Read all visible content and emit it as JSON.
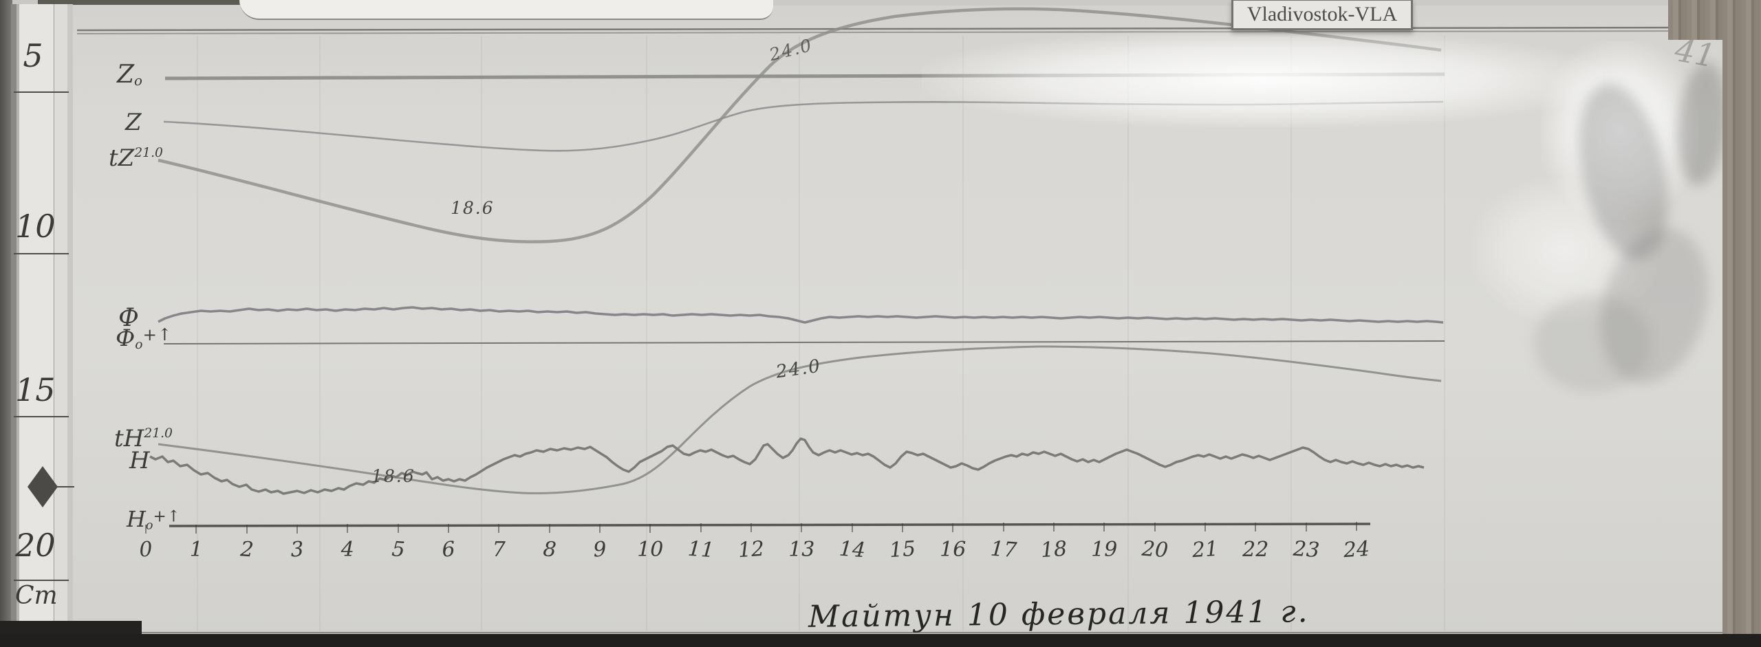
{
  "photo": {
    "station_label": "Vladivostok-VLA",
    "corner_note": "41"
  },
  "ruler": {
    "marks": [
      "5",
      "10",
      "15",
      "20",
      "Cm"
    ]
  },
  "chart": {
    "caption": "Майтун 10 февраля 1941 г.",
    "trace_labels": {
      "z0": {
        "main": "Z",
        "sub": "o"
      },
      "z": {
        "main": "Z"
      },
      "tz": {
        "main": "tZ",
        "sup": "21.0"
      },
      "phi": {
        "main": "Ф"
      },
      "phi0": {
        "main": "Ф",
        "sub": "o",
        "suffix": "+↑"
      },
      "th": {
        "main": "tH",
        "sup": "21.0"
      },
      "h": {
        "main": "H"
      },
      "h0": {
        "main": "H",
        "sub": "o",
        "suffix": "+↑"
      }
    },
    "annotations": {
      "tz_min": "18.6",
      "tz_cross": "24.0",
      "th_min": "18.6",
      "th_cross": "24.0"
    },
    "x_axis": {
      "unit": "hour",
      "ticks": [
        "0",
        "1",
        "2",
        "3",
        "4",
        "5",
        "6",
        "7",
        "8",
        "9",
        "10",
        "11",
        "12",
        "13",
        "14",
        "15",
        "16",
        "17",
        "18",
        "19",
        "20",
        "21",
        "22",
        "23",
        "24"
      ]
    }
  },
  "chart_data": {
    "type": "line",
    "title": "Майтун 10 февраля 1941 г.",
    "station": "Vladivostok-VLA",
    "x": [
      0,
      1,
      2,
      3,
      4,
      5,
      6,
      7,
      8,
      9,
      10,
      11,
      12,
      13,
      14,
      15,
      16,
      17,
      18,
      19,
      20,
      21,
      22,
      23,
      24
    ],
    "x_unit": "hour",
    "x_range": [
      0,
      24
    ],
    "grid": false,
    "legend_position": "handwritten labels in left margin",
    "baselines": [
      "Zo (straight reference line)",
      "Фo (straight reference line)",
      "Ho (straight reference line, carries hour ticks)"
    ],
    "series": [
      {
        "name": "Z",
        "unit": "mm below Zo baseline (digitized from cm ruler scale)",
        "values": [
          14.3,
          15.1,
          16.2,
          17.4,
          18.9,
          20.4,
          21.7,
          22.8,
          23.2,
          21.9,
          18.3,
          13.2,
          10.2,
          8.7,
          8.3,
          8.3,
          8.5,
          8.7,
          8.9,
          8.9,
          8.9,
          8.7,
          8.5,
          8.3,
          8.1
        ]
      },
      {
        "name": "tZ",
        "unit": "°C",
        "start_value": 21.0,
        "values": [
          21.0,
          20.7,
          20.4,
          20.0,
          19.7,
          19.3,
          18.9,
          18.7,
          18.7,
          19.1,
          20.3,
          22.2,
          23.6,
          24.8,
          25.3,
          25.5,
          25.6,
          25.5,
          25.4,
          25.3,
          25.1,
          24.9,
          24.7,
          24.5,
          24.3
        ],
        "marked_points": [
          {
            "value": 21.0,
            "at_hour": 0
          },
          {
            "value": 18.6,
            "at_hour": 7.5,
            "note": "minimum"
          },
          {
            "value": 24.0,
            "at_hour": 12.7,
            "note": "crossing top border"
          }
        ]
      },
      {
        "name": "Ф",
        "unit": "mm above Фo baseline (digitized from cm ruler scale)",
        "values": [
          6.6,
          9.4,
          10.0,
          10.2,
          10.4,
          10.2,
          10.9,
          10.4,
          10.0,
          9.4,
          8.9,
          8.7,
          8.5,
          7.0,
          7.9,
          8.3,
          8.1,
          8.3,
          8.1,
          7.9,
          7.9,
          7.7,
          7.4,
          7.0,
          6.6
        ]
      },
      {
        "name": "tH",
        "unit": "°C",
        "start_value": 21.0,
        "values": [
          21.0,
          20.8,
          20.5,
          20.2,
          19.8,
          19.4,
          19.0,
          18.7,
          18.6,
          18.9,
          20.3,
          22.4,
          23.6,
          24.5,
          25.0,
          25.3,
          25.5,
          25.6,
          25.6,
          25.5,
          25.3,
          25.1,
          24.8,
          24.5,
          24.2
        ],
        "marked_points": [
          {
            "value": 21.0,
            "at_hour": 0
          },
          {
            "value": 18.6,
            "at_hour": 8,
            "note": "minimum"
          },
          {
            "value": 24.0,
            "at_hour": 12.8,
            "note": "marked on rise"
          }
        ]
      },
      {
        "name": "H",
        "unit": "mm above Ho baseline (digitized from cm ruler scale)",
        "values": [
          20.9,
          16.0,
          12.3,
          10.2,
          10.9,
          13.4,
          13.6,
          18.3,
          22.6,
          21.9,
          20.9,
          23.0,
          19.1,
          26.2,
          22.3,
          22.6,
          17.7,
          20.4,
          21.9,
          19.8,
          18.7,
          20.9,
          20.9,
          23.0,
          19.4
        ]
      }
    ],
    "colors": {
      "paper": "#d9d8d4",
      "trace": "#85858a",
      "ink": "#3c3c3a"
    }
  }
}
